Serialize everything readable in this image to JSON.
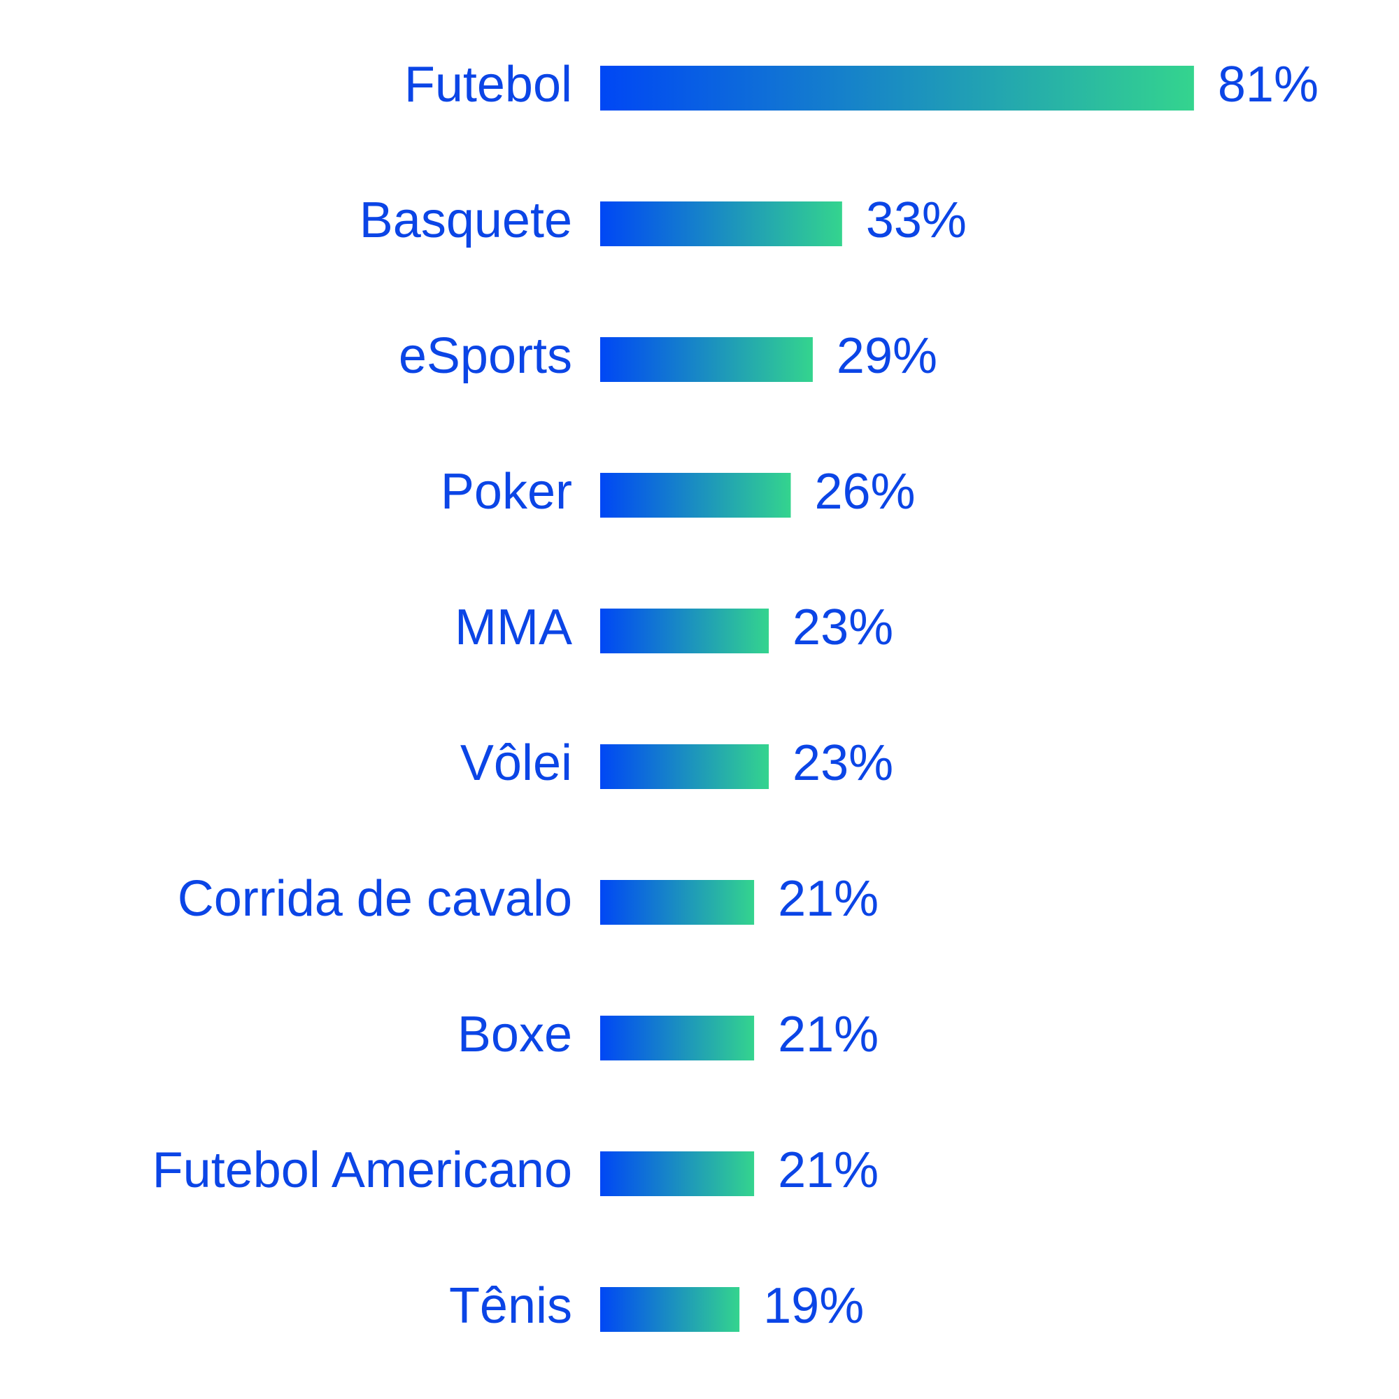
{
  "chart_data": {
    "type": "bar",
    "orientation": "horizontal",
    "categories": [
      "Futebol",
      "Basquete",
      "eSports",
      "Poker",
      "MMA",
      "Vôlei",
      "Corrida de cavalo",
      "Boxe",
      "Futebol Americano",
      "Tênis"
    ],
    "values": [
      81,
      33,
      29,
      26,
      23,
      23,
      21,
      21,
      21,
      19
    ],
    "value_labels": [
      "81%",
      "33%",
      "29%",
      "26%",
      "23%",
      "23%",
      "21%",
      "21%",
      "21%",
      "19%"
    ],
    "colors": [
      "#0047f5",
      "#34d48e"
    ],
    "text_color": "#0b45e6"
  }
}
